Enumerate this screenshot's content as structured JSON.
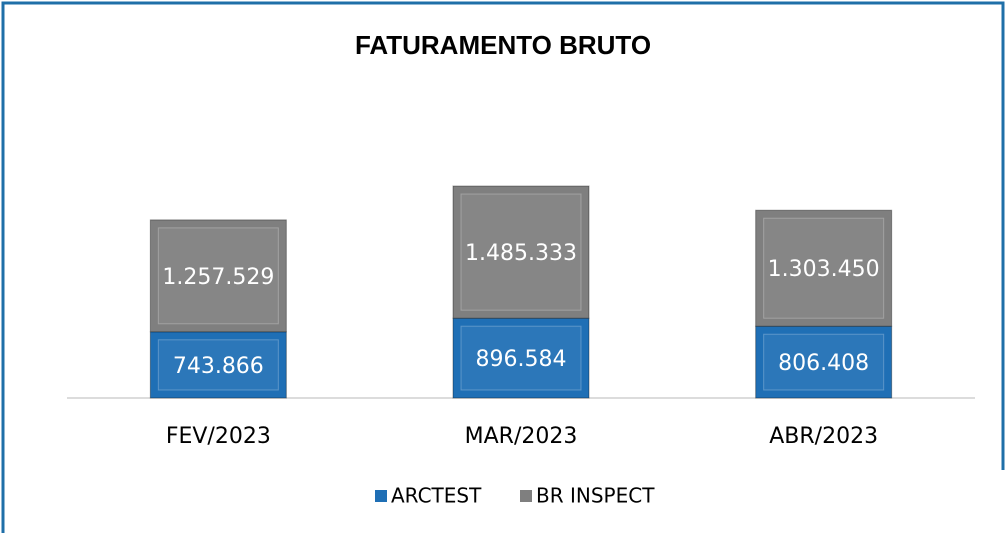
{
  "chart_data": {
    "type": "stacked_bar",
    "title": "FATURAMENTO BRUTO",
    "categories": [
      "FEV/2023",
      "MAR/2023",
      "ABR/2023"
    ],
    "series": [
      {
        "name": "ARCTEST",
        "color": "#1f6fb5",
        "values": [
          743866,
          896584,
          806408
        ],
        "value_labels": [
          "743.866",
          "896.584",
          "806.408"
        ]
      },
      {
        "name": "BR INSPECT",
        "color": "#7f7f7f",
        "values": [
          1257529,
          1485333,
          1303450
        ],
        "value_labels": [
          "1.257.529",
          "1.485.333",
          "1.303.450"
        ]
      }
    ],
    "ylim": [
      0,
      3500000
    ]
  }
}
